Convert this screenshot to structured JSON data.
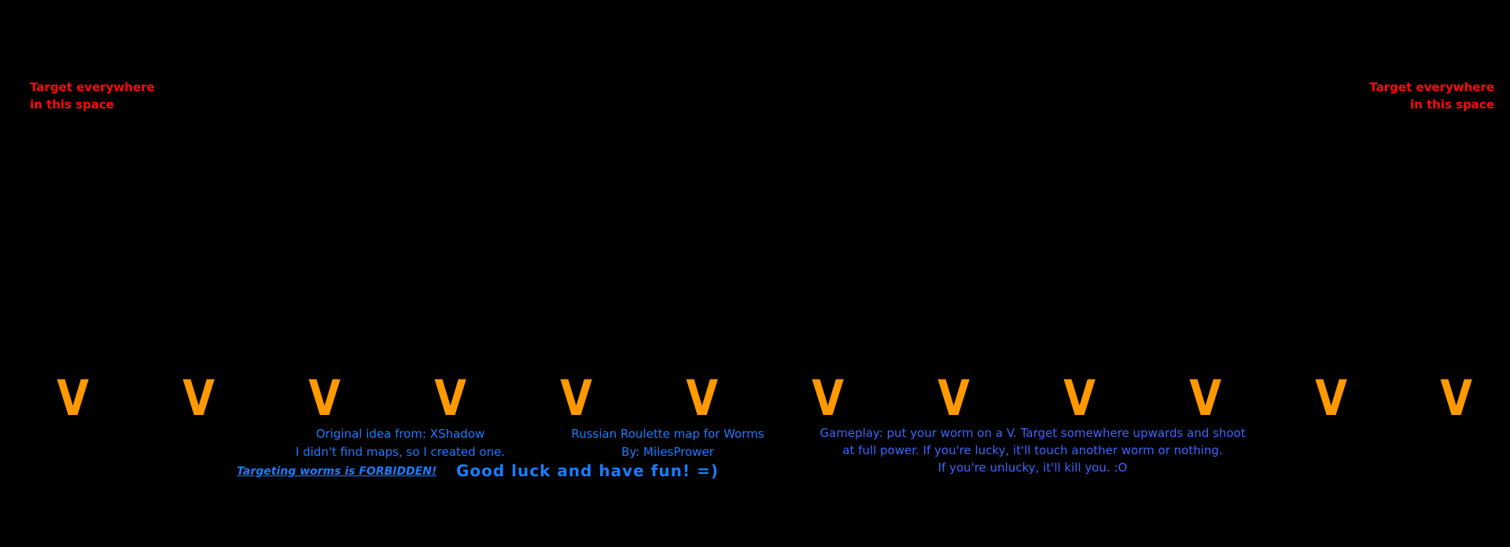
{
  "target_hint_left": [
    "Target everywhere",
    "in this space"
  ],
  "target_hint_right": [
    "Target everywhere",
    "in this space"
  ],
  "spawn_markers": [
    "V",
    "V",
    "V",
    "V",
    "V",
    "V",
    "V",
    "V",
    "V",
    "V",
    "V",
    "V"
  ],
  "credits": {
    "idea_line": "Original idea from: XShadow",
    "reason_line": "I didn't find maps, so I created one.",
    "title": "Russian Roulette map for Worms",
    "author": "By: MilesPrower",
    "warning": "Targeting worms is FORBIDDEN!",
    "good_luck": "Good luck and have fun! =)"
  },
  "gameplay": [
    "Gameplay: put your worm on a V. Target somewhere upwards and shoot",
    "at full power. If you're lucky, it'll touch another worm or nothing.",
    "If you're unlucky, it'll kill you. :O"
  ],
  "colors": {
    "background": "#000000",
    "hint": "#ff0a0a",
    "marker": "#ff9900",
    "credits": "#1a7cff",
    "gameplay": "#3a66ff"
  }
}
